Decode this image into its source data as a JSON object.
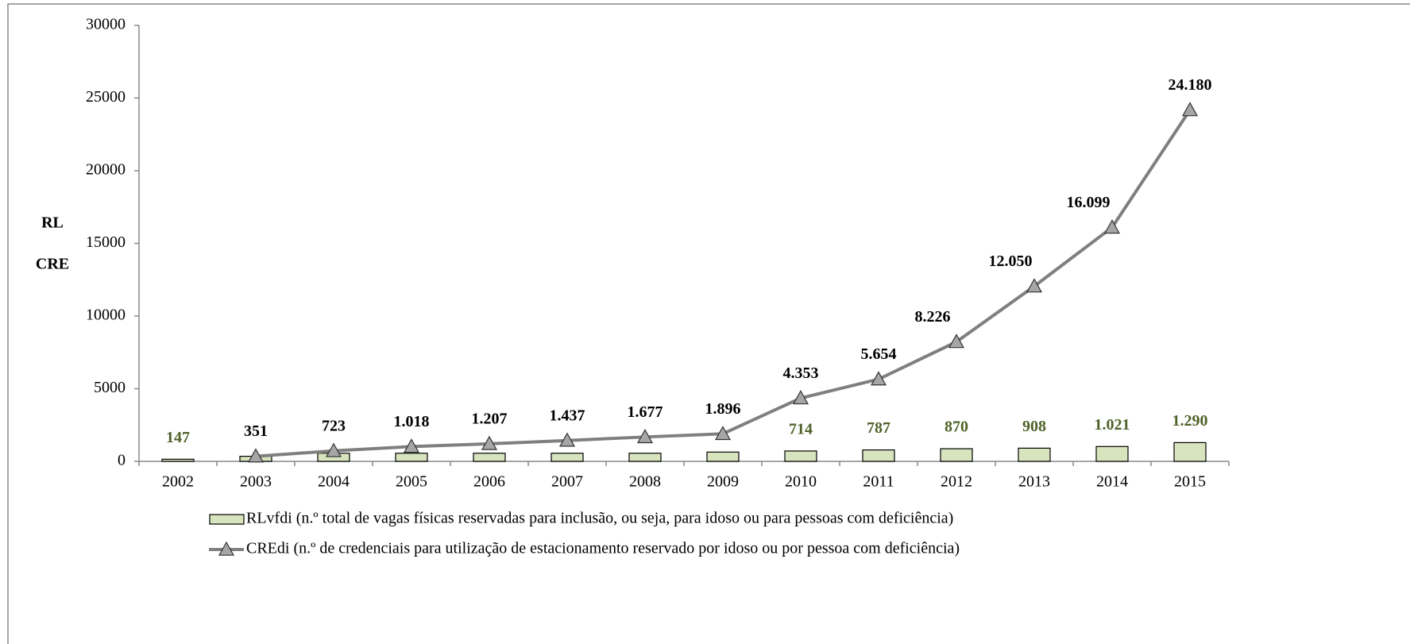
{
  "chart_data": {
    "type": "bar",
    "ylabel_lines": [
      "RL",
      "CRE"
    ],
    "categories": [
      "2002",
      "2003",
      "2004",
      "2005",
      "2006",
      "2007",
      "2008",
      "2009",
      "2010",
      "2011",
      "2012",
      "2013",
      "2014",
      "2015"
    ],
    "series": [
      {
        "name": "RLvfdi (n.º total de vagas físicas reservadas para inclusão, ou seja, para idoso ou para pessoas com deficiência)",
        "type": "bar",
        "color": "#d7e4bd",
        "label_color": "#4f6228",
        "values": [
          147,
          350,
          560,
          560,
          560,
          560,
          560,
          640,
          714,
          787,
          870,
          908,
          1021,
          1290
        ],
        "value_labels": [
          "147",
          null,
          null,
          null,
          null,
          null,
          null,
          null,
          "714",
          "787",
          "870",
          "908",
          "1.021",
          "1.290"
        ]
      },
      {
        "name": "CREdi (n.º de credenciais para utilização de estacionamento reservado por idoso ou por pessoa com deficiência)",
        "type": "line",
        "color": "#7f7f7f",
        "marker_color": "#a6a6a6",
        "label_color": "#000000",
        "values": [
          null,
          351,
          723,
          1018,
          1207,
          1437,
          1677,
          1896,
          4353,
          5654,
          8226,
          12050,
          16099,
          24180
        ],
        "value_labels": [
          null,
          "351",
          "723",
          "1.018",
          "1.207",
          "1.437",
          "1.677",
          "1.896",
          "4.353",
          "5.654",
          "8.226",
          "12.050",
          "16.099",
          "24.180"
        ]
      }
    ],
    "ylim": [
      0,
      30000
    ],
    "yticks": [
      0,
      5000,
      10000,
      15000,
      20000,
      25000,
      30000
    ],
    "grid": false
  }
}
